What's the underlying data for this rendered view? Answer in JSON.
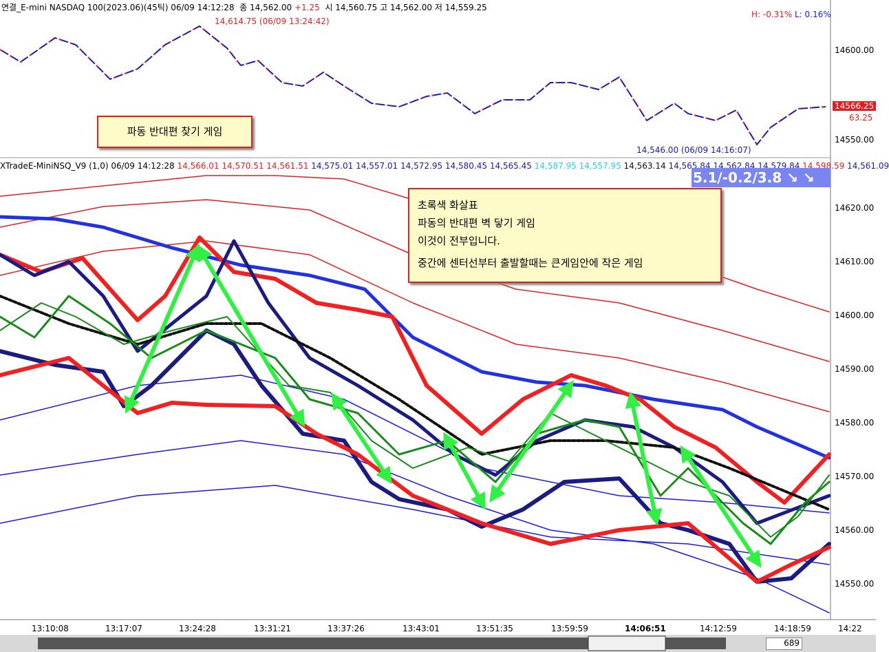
{
  "top_panel": {
    "title": "연결_E-mini NASDAQ 100(2023.06)(45틱) 06/09 14:12:28",
    "close": "종 14,562.00",
    "change": "+1.25",
    "ohl": "시 14,560.75 고 14,562.00 저 14,559.25",
    "high_pct": "H: -0.31%",
    "low_pct": "L: 0.16%",
    "high_note": "14,614.75 (06/09 13:24:42)",
    "low_note": "14,546.00 (06/09 14:16:07)",
    "y_labels": [
      "14600.00",
      "14550.00"
    ],
    "last_price": "14566.25",
    "last_sub": "63.25",
    "game_box": "파동 반대편 찾기 게임"
  },
  "lower_panel": {
    "title": "XTradeE-MiniNSQ_V9  (1,0) 06/09 14:12:28",
    "values": [
      {
        "text": "14,566.01",
        "color": "#e02020"
      },
      {
        "text": "14,570.51",
        "color": "#e02020"
      },
      {
        "text": "14,561.51",
        "color": "#e02020"
      },
      {
        "text": "14,575.01",
        "color": "#1a1aa8"
      },
      {
        "text": "14,557.01",
        "color": "#1a1aa8"
      },
      {
        "text": "14,572.95",
        "color": "#1a1aa8"
      },
      {
        "text": "14,580.45",
        "color": "#1a1aa8"
      },
      {
        "text": "14,565.45",
        "color": "#1a1aa8"
      },
      {
        "text": "14,587.95",
        "color": "#22d3e6"
      },
      {
        "text": "14,557.95",
        "color": "#22d3e6"
      },
      {
        "text": "14,563.14",
        "color": "#111111"
      },
      {
        "text": "14,565.84",
        "color": "#1a1aa8"
      },
      {
        "text": "14,562.84",
        "color": "#1a1aa8"
      },
      {
        "text": "14,579.84",
        "color": "#1a1aa8"
      },
      {
        "text": "14,598.59",
        "color": "#e02020"
      },
      {
        "text": "14,561.09",
        "color": "#1a1aa8"
      }
    ],
    "badge": "5.1/-0.2/3.8  ↘ ↘",
    "note_lines": [
      "초록색 화살표",
      "파동의 반대편 벽 닿기 게임",
      "이것이 전부입니다.",
      "중간에 센터선부터 출발할때는 큰게임안에 작은 게임"
    ],
    "y_labels": [
      "14620.00",
      "14610.00",
      "14600.00",
      "14590.00",
      "14580.00",
      "14570.00",
      "14560.00",
      "14550.00"
    ],
    "x_labels": [
      "13:10:08",
      "13:17:07",
      "13:24:28",
      "13:31:21",
      "13:37:26",
      "13:43:01",
      "13:51:35",
      "13:59:59",
      "14:06:51",
      "14:12:59",
      "14:18:59",
      "14:22"
    ]
  },
  "scrollbar": {
    "count": "689"
  }
}
